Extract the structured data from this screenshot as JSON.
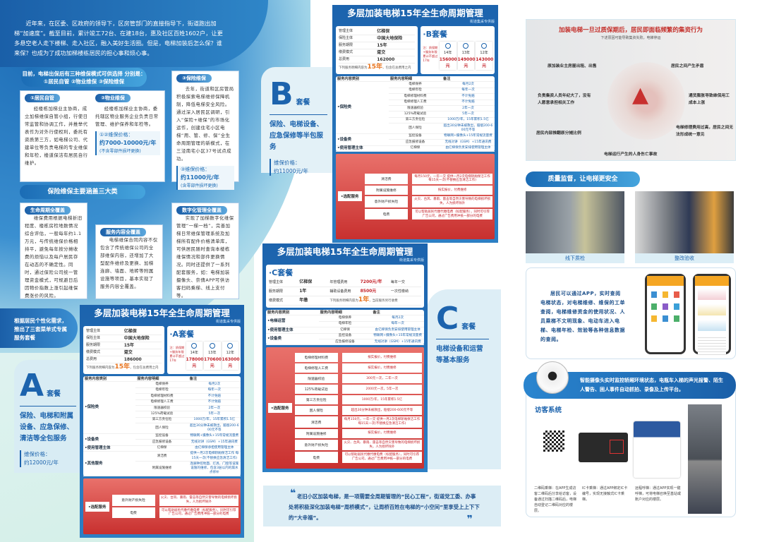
{
  "intro": "近年来，在区委、区政府的领导下，区房管部门的直接指导下，街道跑出加梯“加速度”。截至目前，累计竣工72台、在建18台，惠及社区百姓1602户，让更多悬空老人走下楼梯、走入社区，融入美好生活圈。但是，电梯加装后怎么保？谁来保？也成为了成功加梯楼栋居民的担心事和烦心事。",
  "modes": {
    "title": "目前，电梯出保后有三种维保模式可供选择 分别是：①居民自管 ②物业维保 ③保险维保",
    "m1": {
      "tag": "①居民自管",
      "text": "经楼栋加梯业主协商，成立加梯维保自管小组，行使日常监管和协调工作，并推举代表作为对外行使权利，委托有资质第三方，如电梯公司、代建单位等负责电梯的专业维保和年检，楼道保洁有居民自行维护。"
    },
    "m2": {
      "tag": "②物业维保",
      "text": "经楼栋加梯业主协商，委托辖区物业服务企业负责日常管理、维护保养和年检等。"
    },
    "m12price": {
      "label": "①②维保价格：",
      "value": "约7000-10000元/年",
      "note": "(不含零部件损坏更换)"
    },
    "m3": {
      "tag": "③保险维保",
      "text": "去年，街道和区房管局积极探索电梯维修保障机制，降低电梯安全风险。通过深入居民区调研，引入“保险+维保”的市场化运作，创建住宅小区电梯“用、管、修、保”全生命周期管理的新模式，在三泾南宅小区37号试点成功。"
    },
    "m3price": {
      "label": "③维保价格：",
      "value": "约11000元/年",
      "note": "(含零部件损坏更换)"
    }
  },
  "cover": {
    "title": "保险维保主要涵盖三大类",
    "items": [
      {
        "tag": "生命周期全覆盖",
        "text": "维保费用根据电梯折旧程度、楼栋房检地数情况综合评估，一般每年约1.1万元，与传统维保价格相持平，避免每年按分摊收费的烦恼以及每户居民存在动态的不确定性。同时，通过保险公司统一管理资金模式，可规避日后因物价指数上涨引起维保费涨价的风险。"
      },
      {
        "tag": "服务内容全覆盖",
        "text": "电梯维保合同内容不仅包含了传统维保公司的全部维保内容，还增加了大型配件维修及更换、加梯连廊、墙面、地砖等附属设施等项目，基本实现了服务内容全覆盖。"
      },
      {
        "tag": "数字化管理全覆盖",
        "text": "实现了加梯数字化维保管理“一梯一档”，完善加梯日常维保管理系统及加梯所有配件价格清单库，可供居民随时查询本楼栋维保情况和部件更换情况。同时还提供了一系列配套服务，如：电梯加装摄像头、奈倩APP可供访客扫码乘梯、线上支付等。"
      }
    ]
  },
  "menu_intro": "根据居民个性化需求，推出了三套菜单式专属服务套餐",
  "labels": {
    "A": {
      "letter": "A",
      "suffix": "套餐",
      "desc": "保险、电梯和附属设备、应急保修、清洁等全包服务",
      "price_label": "维保价格：",
      "price": "约12000元/年"
    },
    "B": {
      "letter": "B",
      "suffix": "套餐",
      "desc": "保险、电梯设备、应急保修等半包服务",
      "price_label": "维保价格：",
      "price": "约11000元/年"
    },
    "C": {
      "letter": "C",
      "suffix": "套餐",
      "desc": "电梯设备和运营等基本服务"
    }
  },
  "packages": {
    "A": {
      "title": "多层加装电梯15年全生命周期管理",
      "subtitle": "街道集采专供版",
      "name": "·A套餐",
      "info": [
        [
          "管理主体",
          "亿梯保"
        ],
        [
          "保险主体",
          "中国大地保险"
        ],
        [
          "服务期限",
          "15年"
        ],
        [
          "缴费模式",
          "趸交"
        ],
        [
          "总费用",
          "186000"
        ]
      ],
      "note_pre": "下列服务明细内容为",
      "note_hl": "15年",
      "note_post": "，包含在总费用之内",
      "year_note": "注：质保期+服务年限累计不超过17年",
      "years": [
        [
          "14年",
          "178000元"
        ],
        [
          "13年",
          "170600元"
        ],
        [
          "12年",
          "163000元"
        ]
      ],
      "headers": [
        "服务内容类别",
        "服务内容明细",
        "备注"
      ],
      "groups": [
        {
          "cat": "•保险类",
          "rows": [
            [
              "电梯保养",
              "每月2次"
            ],
            [
              "电梯年检",
              "每年一次"
            ],
            [
              "电梯修理材料费",
              "不计免赔"
            ],
            [
              "电梯修理人工费",
              "不计免赔"
            ],
            [
              "限速器校验",
              "2年一次"
            ],
            [
              "125%荷载试验",
              "5年一次"
            ],
            [
              "第三方责任险",
              "1000万/年，15年累积1.5亿"
            ],
            [
              "困人保险",
              "超出30分钟未被救出，赔偿200-600元不等"
            ]
          ]
        },
        {
          "cat": "•设备类",
          "rows": [
            [
              "监控设备",
              "物联网+摄像头+15年常规流量费"
            ],
            [
              "应急报修设备",
              "无线对讲（GSM）+15年通讯费"
            ]
          ]
        },
        {
          "cat": "•使用管理主体",
          "rows": [
            [
              "亿梯保",
              "由亿梯保承担使用管理主体"
            ]
          ]
        },
        {
          "cat": "•其他服务",
          "rows": [
            [
              "清洁费",
              "提供一月2次电梯轿厢保洁工作 每15天一次(不替换应急清洁工作)"
            ],
            [
              "附属设施维修",
              "连廊钟控地面、灯具、门窗等设施设施的维修，包含3层以内的漏水点修补"
            ]
          ]
        }
      ],
      "optional_label": "•选配服务",
      "optional": [
        [
          "意外财产损失险",
          "火灾、台风、暴雨、雷击等自然灾害导致的电梯损坏损失，人为损坏除外"
        ],
        [
          "电费",
          "可以帮助居民代缴代缴电费（标配服务），同时可引荐广告公司，通过广告费用冲抵一部分的电费"
        ]
      ]
    },
    "B": {
      "title": "多层加装电梯15年全生命周期管理",
      "subtitle": "街道集采专供版",
      "name": "·B套餐",
      "info": [
        [
          "管理主体",
          "亿梯保"
        ],
        [
          "保险主体",
          "中国大地保险"
        ],
        [
          "服务期限",
          "15年"
        ],
        [
          "缴费模式",
          "趸交"
        ],
        [
          "总费用",
          "162000"
        ]
      ],
      "note_pre": "下列服务明细内容为",
      "note_hl": "15年",
      "note_post": "，包含在总费用之内",
      "year_note": "注：质保期+服务年限累计不超过17年",
      "years": [
        [
          "14年",
          "156000元"
        ],
        [
          "13年",
          "149000元"
        ],
        [
          "12年",
          "143000元"
        ]
      ],
      "headers": [
        "服务内容类别",
        "服务内容明细",
        "备注"
      ],
      "groups": [
        {
          "cat": "•保险类",
          "rows": [
            [
              "电梯保养",
              "每月2次"
            ],
            [
              "电梯年检",
              "每年一次"
            ],
            [
              "电梯修理材料费",
              "不计免赔"
            ],
            [
              "电梯修理人工费",
              "不计免赔"
            ],
            [
              "限速器校验",
              "2年一次"
            ],
            [
              "125%荷载试验",
              "5年一次"
            ],
            [
              "第三方责任险",
              "1000万/年，15年累积1.5亿"
            ],
            [
              "困人保险",
              "超出30分钟未被救出，赔偿200-600元不等"
            ]
          ]
        },
        {
          "cat": "•设备类",
          "rows": [
            [
              "监控设备",
              "物联网+摄像头+15年常规流量费"
            ],
            [
              "应急报修设备",
              "无线对讲（GSM）+15年通讯费"
            ]
          ]
        },
        {
          "cat": "•使用管理主体",
          "rows": [
            [
              "亿梯保",
              "由亿梯保负责安排使用管理主体"
            ]
          ]
        }
      ],
      "optional_label": "•选配服务",
      "optional": [
        [
          "清洁费",
          "每月150元，一年一交 提供一月2次电梯轿厢保洁工作 每15天一次(不替换应急清洁工作)"
        ],
        [
          "附属设施维修",
          "按实报价，付费维修"
        ],
        [
          "意外财产损失险",
          "火灾、台风、暴雨、雷击等自然灾害导致的电梯损坏损失，人为损坏除外"
        ],
        [
          "电费",
          "可以帮助居民代缴代缴电费（标配服务），同时可引荐广告公司，通过广告费用冲抵一部分的电费"
        ]
      ]
    },
    "C": {
      "title": "多层加装电梯15年全生命周期管理",
      "subtitle": "街道集采专供版",
      "name": "·C套餐",
      "info": [
        [
          "管理主体",
          "亿梯保"
        ],
        [
          "服务期限",
          "1年"
        ],
        [
          "缴费模式",
          "年缴"
        ]
      ],
      "info2": [
        [
          "年管理费用",
          "7200元/年",
          "每年一交"
        ],
        [
          "辅助设备费用",
          "8500元",
          "一次性缴纳"
        ]
      ],
      "note_pre": "下列服务明细内容为",
      "note_hl": "1年",
      "note_post": "，当前服务另行收费",
      "headers": [
        "服务内容类别",
        "服务内容明细",
        "备注"
      ],
      "groups": [
        {
          "cat": "•电梯运营",
          "rows": [
            [
              "电梯保养",
              "每月2次"
            ],
            [
              "电梯年检",
              "每年一次"
            ]
          ]
        },
        {
          "cat": "•使用管理主体",
          "rows": [
            [
              "亿梯保",
              "由亿梯保负责安排使用管理主体"
            ]
          ]
        },
        {
          "cat": "•设备类",
          "rows": [
            [
              "监控设备",
              "物联网+摄像头+15年常规流量费"
            ],
            [
              "应急报修设备",
              "无线对讲（GSM）+15年通讯费"
            ]
          ]
        }
      ],
      "optional_label": "•选配服务",
      "optional": [
        [
          "电梯修理材料费",
          "按实报价，付费维修"
        ],
        [
          "电梯修理人工费",
          "按实报价，付费维修"
        ],
        [
          "限速器校验",
          "300元一次，二年一次"
        ],
        [
          "125%荷载试验",
          "2000元一次，5年一次"
        ],
        [
          "第三方责任险",
          "1000万/年，15年累积1.5亿"
        ],
        [
          "困人保险",
          "超出30分钟未被救出，赔偿200-600元不等"
        ],
        [
          "清洁费",
          "每月150元，一年一交 提供一月2次电梯轿厢保洁工作 每15天一次(不替换应急清洁工作)"
        ],
        [
          "附属设施维修",
          "按实报价，付费维修"
        ],
        [
          "意外财产损失险",
          "火灾、台风、暴雨、雷击等自然灾害导致的电梯损坏损失，人为损坏除外"
        ],
        [
          "电费",
          "可以帮助居民代缴代缴电费（标配服务），同时可引荐广告公司，通过广告费用冲抵一部分的电费"
        ]
      ]
    }
  },
  "quote": "老旧小区加装电梯，是一项需要全周期管理的“民心工程”，街道党工委、办事处将积极深化加装电梯“周桥模式”，让周桥百姓在电梯的“小空间”里享受上上下下的“大幸福”。",
  "risk": {
    "title": "加装电梯一旦过质保期后，居民即面临频繁的集资行为",
    "subtitle": "下述原因可能导致集资失败，电梯停运",
    "items": [
      "原加装业主房屋出租、出售",
      "居民之间产生矛盾",
      "负责集资人员年纪大了，没有人愿意承担相关工作",
      "通货膨胀导致维保用工成本上涨",
      "居民内部推翻原分摊比例",
      "电梯修理费用过高，居民之间无法形成统一意见",
      "电梯运行产生的人身伤亡事故"
    ]
  },
  "quality": {
    "title": "质量监督，让电梯更安全",
    "photo1": "线下质检",
    "photo2": "整改验收",
    "app_text": "居民可以通过APP，实时查阅电梯状态，对电梯维修、维保的工单查阅，电梯维修资金的使用状况、人员乘梯不文明现象、电动车进入电梯、电梯年检、效验等各种信息数据的查阅。"
  },
  "camera_text": "智能摄像头实时监控轿厢环境状态，电瓶车入梯的声光报警、陌生人警告、困人事件自动抓拍、录像及上传平台。",
  "visitor": {
    "title": "访客系统",
    "items": [
      "二维码乘梯：在APP生成访客二维码后分享给访客，设备通过扫描二维码后，电梯自动登记二维码对应的楼层。",
      "IC卡乘梯：通过APP绑定IC卡编号，实现无接触式IC卡乘梯。",
      "远程呼梯：通过APP实现一键呼梯，可将电梯召唤至基站或账户对应的楼层。"
    ]
  },
  "colors": {
    "primary": "#1c63ad",
    "accent_red": "#c4242b",
    "orange": "#e8731c"
  }
}
